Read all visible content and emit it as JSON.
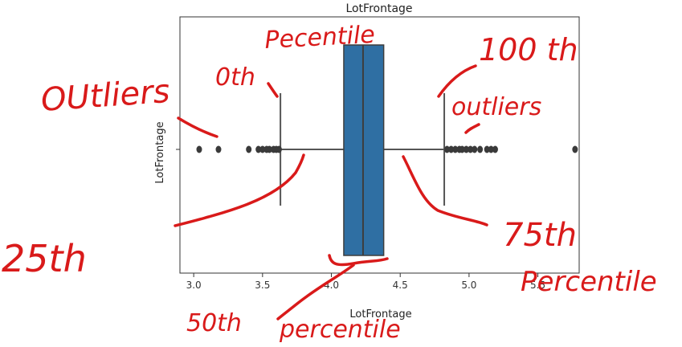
{
  "chart_data": {
    "type": "boxplot",
    "orientation": "horizontal",
    "title": "LotFrontage",
    "xlabel": "LotFrontage",
    "ylabel": "LotFrontage",
    "xlim": [
      2.9,
      5.8
    ],
    "xticks": [
      3.0,
      3.5,
      4.0,
      4.5,
      5.0,
      5.5
    ],
    "xtick_labels": [
      "3.0",
      "3.5",
      "4.0",
      "4.5",
      "5.0",
      "5.5"
    ],
    "box": {
      "whisker_low": 3.63,
      "q1": 4.09,
      "median": 4.23,
      "q3": 4.38,
      "whisker_high": 4.82
    },
    "outliers_low": [
      3.04,
      3.18,
      3.4,
      3.47,
      3.5,
      3.53,
      3.55,
      3.58,
      3.6,
      3.62
    ],
    "outliers_high": [
      4.84,
      4.87,
      4.9,
      4.93,
      4.95,
      4.98,
      5.01,
      5.04,
      5.08,
      5.13,
      5.16,
      5.19,
      5.77
    ],
    "colors": {
      "box": "#2f6fa3",
      "line": "#555555",
      "outlier": "#3a3a3a"
    }
  },
  "annotations": {
    "outliers_left": "OUtliers",
    "zeroth": "0th",
    "percentile_top": "Pecentile",
    "hundredth": "100 th",
    "outliers_right": "outliers",
    "twenty_fifth": "25th",
    "seventy_fifth": "75th",
    "percentile_right": "Percentile",
    "fiftieth": "50th",
    "percentile_bottom": "percentile"
  },
  "colors": {
    "annotation": "#d91a1a"
  }
}
